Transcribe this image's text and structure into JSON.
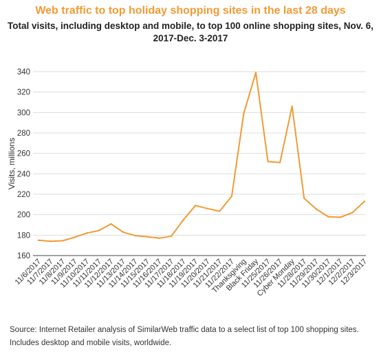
{
  "colors": {
    "line": "#F29A33",
    "title": "#F29A33",
    "grid": "#DDDDDD"
  },
  "chart_data": {
    "type": "line",
    "title": "Web traffic to top holiday shopping sites in the last 28 days",
    "subtitle": "Total visits, including desktop and mobile, to top 100 online shopping sites, Nov. 6, 2017-Dec. 3-2017",
    "xlabel": "",
    "ylabel": "Visits, millions",
    "ylim": [
      160,
      340
    ],
    "yticks": [
      160,
      180,
      200,
      220,
      240,
      260,
      280,
      300,
      320,
      340
    ],
    "grid": true,
    "categories": [
      "11/6/2017",
      "11/7/2017",
      "11/8/2017",
      "11/9/2017",
      "11/10/2017",
      "11/11/2017",
      "11/12/2017",
      "11/13/2017",
      "11/14/2017",
      "11/15/2017",
      "11/16/2017",
      "11/17/2017",
      "11/18/2017",
      "11/19/2017",
      "11/20/2017",
      "11/21/2017",
      "11/22/2017",
      "Thanksgiving",
      "Black Friday",
      "11/25/2017",
      "11/26/2017",
      "Cyber Monday",
      "11/28/2017",
      "11/29/2017",
      "11/30/2017",
      "12/1/2017",
      "12/2/2017",
      "12/3/2017"
    ],
    "series": [
      {
        "values": [
          175,
          174,
          174.5,
          178,
          182,
          184.5,
          191,
          183,
          179.5,
          178.5,
          177,
          179,
          195,
          209,
          206,
          203.5,
          218,
          299,
          339,
          252,
          251,
          306,
          216,
          205.5,
          198,
          197.5,
          202,
          213
        ]
      }
    ]
  },
  "source": {
    "line1": "Source: Internet Retailer analysis of SimilarWeb traffic data to a select list of top 100 shopping sites.",
    "line2": "Includes desktop and mobile visits, worldwide."
  }
}
